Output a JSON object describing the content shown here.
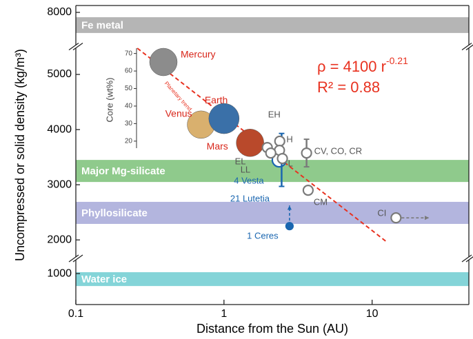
{
  "chart_data": {
    "type": "scatter",
    "xlabel": "Distance from the Sun (AU)",
    "ylabel": "Uncompressed or solid density (kg/m³)",
    "xscale": "log",
    "xlim": [
      0.1,
      45
    ],
    "xticks": [
      0.1,
      1,
      10
    ],
    "y_segments": [
      {
        "ylim": [
          7410,
          8125
        ],
        "yticks": [
          8000
        ]
      },
      {
        "ylim": [
          1690,
          5475
        ],
        "yticks": [
          2000,
          3000,
          4000,
          5000
        ]
      },
      {
        "ylim": [
          440,
          1250
        ],
        "yticks": [
          1000
        ]
      }
    ],
    "bands": [
      {
        "name": "Fe metal",
        "ylim": [
          7625,
          7912
        ],
        "color": "#b5b5b5"
      },
      {
        "name": "Major Mg-silicate",
        "ylim": [
          3050,
          3450
        ],
        "color": "#8fca8c"
      },
      {
        "name": "Phyllosilicate",
        "ylim": [
          2290,
          2690
        ],
        "color": "#b3b5de"
      },
      {
        "name": "Water ice",
        "ylim": [
          775,
          1025
        ],
        "color": "#84d4d8"
      }
    ],
    "trend_line": {
      "x": [
        0.26,
        12.4
      ],
      "y": [
        5475,
        1975
      ],
      "color": "#e8311f",
      "label": "Planetary trend"
    },
    "formula": {
      "text": "ρ = 4100 r",
      "exponent": "-0.21",
      "r2": "R² = 0.88",
      "color": "#e8311f"
    },
    "inset": {
      "ylabel": "Core (wt%)",
      "ylim": [
        16,
        73
      ],
      "yticks": [
        20,
        30,
        40,
        50,
        60,
        70
      ]
    },
    "series": [
      {
        "name": "Planets",
        "style": "planet",
        "label_color": "#d8261a",
        "labels": [
          "Mercury",
          "Venus",
          "Earth",
          "Mars"
        ],
        "colors": [
          "#8c8c8c",
          "#d9b06e",
          "#3a70a8",
          "#b9492b"
        ],
        "x": [
          0.39,
          0.7,
          1.0,
          1.5
        ],
        "values": [
          5225,
          4090,
          4200,
          3760
        ]
      },
      {
        "name": "Asteroids",
        "style": "asteroid",
        "color": "#1a66b0",
        "labels": [
          "4 Vesta",
          "21 Lutetia",
          "1 Ceres"
        ],
        "x": [
          2.36,
          2.45,
          2.77
        ],
        "values": [
          3450,
          3450,
          2250
        ],
        "yerr": [
          null,
          480,
          null
        ],
        "arrows": [
          null,
          null,
          "up"
        ]
      },
      {
        "name": "Meteorites",
        "style": "meteorite",
        "color": "#7a7a7a",
        "labels": [
          "EH",
          "H",
          "EL",
          "LL",
          "L",
          "CV, CO, CR",
          "CM",
          "CI"
        ],
        "x": [
          2.38,
          2.37,
          1.96,
          2.07,
          2.48,
          3.61,
          3.7,
          14.5
        ],
        "values": [
          3790,
          3625,
          3675,
          3575,
          3475,
          3575,
          2900,
          2400
        ],
        "yerr": [
          null,
          null,
          null,
          null,
          null,
          250,
          null,
          null
        ],
        "arrows": [
          null,
          null,
          null,
          null,
          null,
          null,
          null,
          "right"
        ]
      }
    ]
  }
}
